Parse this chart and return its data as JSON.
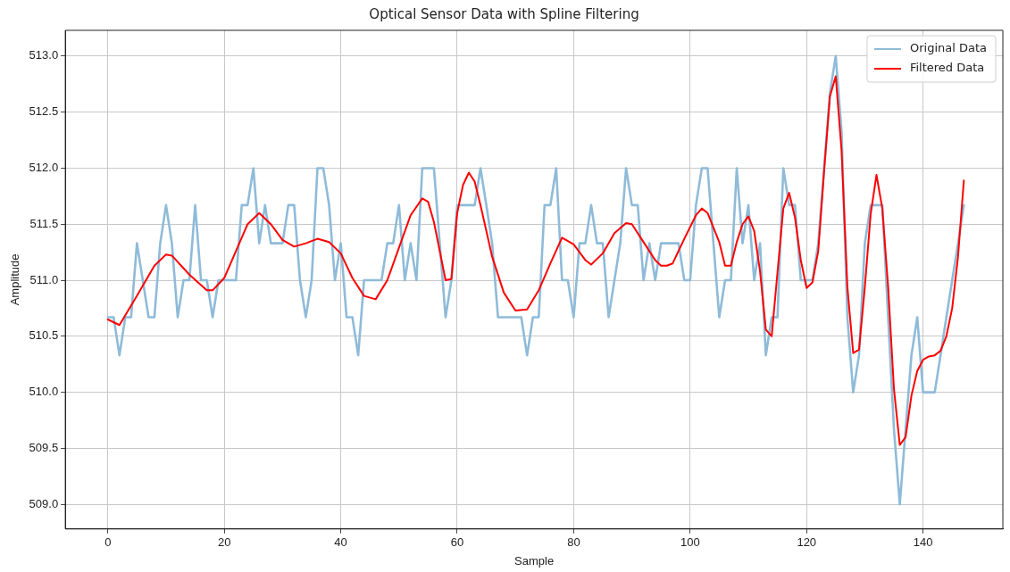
{
  "chart_data": {
    "type": "line",
    "title": "Optical Sensor Data with Spline Filtering",
    "xlabel": "Sample",
    "ylabel": "Amplitude",
    "x": [
      0,
      1,
      2,
      3,
      4,
      5,
      6,
      7,
      8,
      9,
      10,
      11,
      12,
      13,
      14,
      15,
      16,
      17,
      18,
      19,
      20,
      21,
      22,
      23,
      24,
      25,
      26,
      27,
      28,
      29,
      30,
      31,
      32,
      33,
      34,
      35,
      36,
      37,
      38,
      39,
      40,
      41,
      42,
      43,
      44,
      45,
      46,
      47,
      48,
      49,
      50,
      51,
      52,
      53,
      54,
      55,
      56,
      57,
      58,
      59,
      60,
      61,
      62,
      63,
      64,
      65,
      66,
      67,
      68,
      69,
      70,
      71,
      72,
      73,
      74,
      75,
      76,
      77,
      78,
      79,
      80,
      81,
      82,
      83,
      84,
      85,
      86,
      87,
      88,
      89,
      90,
      91,
      92,
      93,
      94,
      95,
      96,
      97,
      98,
      99,
      100,
      101,
      102,
      103,
      104,
      105,
      106,
      107,
      108,
      109,
      110,
      111,
      112,
      113,
      114,
      115,
      116,
      117,
      118,
      119,
      120,
      121,
      122,
      123,
      124,
      125,
      126,
      127,
      128,
      129,
      130,
      131,
      132,
      133,
      134,
      135,
      136,
      137,
      138,
      139,
      140,
      141,
      142,
      143,
      144,
      145,
      146,
      147
    ],
    "series": [
      {
        "name": "Original Data",
        "color": "#8fbbd9",
        "values": [
          510.67,
          510.67,
          510.33,
          510.67,
          510.67,
          511.33,
          511,
          510.67,
          510.67,
          511.33,
          511.67,
          511.33,
          510.67,
          511,
          511,
          511.67,
          511,
          511,
          510.67,
          511,
          511,
          511,
          511,
          511.67,
          511.67,
          512,
          511.33,
          511.67,
          511.33,
          511.33,
          511.33,
          511.67,
          511.67,
          511,
          510.67,
          511,
          512,
          512,
          511.67,
          511,
          511.33,
          510.67,
          510.67,
          510.33,
          511,
          511,
          511,
          511,
          511.33,
          511.33,
          511.67,
          511,
          511.33,
          511,
          512,
          512,
          512,
          511.33,
          510.67,
          511,
          511.67,
          511.67,
          511.67,
          511.67,
          512,
          511.67,
          511.33,
          510.67,
          510.67,
          510.67,
          510.67,
          510.67,
          510.33,
          510.67,
          510.67,
          511.67,
          511.67,
          512,
          511,
          511,
          510.67,
          511.33,
          511.33,
          511.67,
          511.33,
          511.33,
          510.67,
          511,
          511.33,
          512,
          511.67,
          511.67,
          511,
          511.33,
          511,
          511.33,
          511.33,
          511.33,
          511.33,
          511,
          511,
          511.67,
          512,
          512,
          511.33,
          510.67,
          511,
          511,
          512,
          511.33,
          511.67,
          511,
          511.33,
          510.33,
          510.67,
          510.67,
          512,
          511.67,
          511.67,
          511,
          511,
          511,
          511.33,
          512,
          512.67,
          513,
          512.33,
          510.67,
          510,
          510.33,
          511.33,
          511.67,
          511.67,
          511.67,
          510.67,
          509.67,
          509,
          509.67,
          510.33,
          510.67,
          510,
          510,
          510,
          510.33,
          510.67,
          511,
          511.33,
          511.67
        ]
      },
      {
        "name": "Filtered Data",
        "color": "#ff0000",
        "x": [
          0,
          2,
          5,
          8,
          10,
          11,
          14,
          17,
          18,
          20,
          22,
          24,
          26,
          28,
          30,
          32,
          34,
          36,
          38,
          40,
          42,
          44,
          46,
          48,
          50,
          52,
          54,
          55,
          56,
          58,
          59,
          60,
          61,
          62,
          63,
          64,
          66,
          68,
          70,
          72,
          74,
          76,
          78,
          80,
          82,
          83,
          85,
          87,
          89,
          90,
          92,
          94,
          95,
          96,
          97,
          99,
          101,
          102,
          103,
          105,
          106,
          107,
          108,
          109,
          110,
          111,
          112,
          113,
          114,
          115,
          116,
          117,
          118,
          119,
          120,
          121,
          122,
          123,
          124,
          125,
          126,
          127,
          128,
          129,
          130,
          131,
          132,
          133,
          134,
          135,
          136,
          137,
          138,
          139,
          140,
          141,
          142,
          143,
          144,
          145,
          146,
          147
        ],
        "values": [
          510.65,
          510.6,
          510.86,
          511.13,
          511.23,
          511.22,
          511.05,
          510.91,
          510.91,
          511.02,
          511.26,
          511.5,
          511.6,
          511.5,
          511.36,
          511.3,
          511.33,
          511.37,
          511.34,
          511.24,
          511.02,
          510.86,
          510.83,
          511,
          511.29,
          511.58,
          511.73,
          511.7,
          511.52,
          511,
          511.01,
          511.6,
          511.85,
          511.96,
          511.88,
          511.67,
          511.21,
          510.89,
          510.73,
          510.74,
          510.91,
          511.15,
          511.38,
          511.32,
          511.18,
          511.14,
          511.24,
          511.42,
          511.51,
          511.5,
          511.34,
          511.18,
          511.13,
          511.13,
          511.15,
          511.37,
          511.58,
          511.64,
          511.6,
          511.34,
          511.13,
          511.13,
          511.34,
          511.5,
          511.57,
          511.44,
          511.08,
          510.56,
          510.5,
          511.07,
          511.64,
          511.78,
          511.56,
          511.18,
          510.93,
          510.98,
          511.26,
          511.97,
          512.64,
          512.82,
          512.16,
          510.94,
          510.35,
          510.38,
          510.94,
          511.59,
          511.94,
          511.64,
          510.94,
          510.03,
          509.53,
          509.6,
          509.97,
          510.19,
          510.29,
          510.32,
          510.33,
          510.37,
          510.5,
          510.75,
          511.21,
          511.89
        ]
      }
    ],
    "xlim": [
      -7.3,
      153.7
    ],
    "xticks": [
      0,
      20,
      40,
      60,
      80,
      100,
      120,
      140
    ],
    "ylim": [
      508.78,
      513.23
    ],
    "yticks": [
      {
        "value": 509,
        "label": "509.0"
      },
      {
        "value": 509.5,
        "label": "509.5"
      },
      {
        "value": 510,
        "label": "510.0"
      },
      {
        "value": 510.5,
        "label": "510.5"
      },
      {
        "value": 511,
        "label": "511.0"
      },
      {
        "value": 511.5,
        "label": "511.5"
      },
      {
        "value": 512,
        "label": "512.0"
      },
      {
        "value": 512.5,
        "label": "512.5"
      },
      {
        "value": 513,
        "label": "513.0"
      }
    ],
    "grid": true,
    "legend": "top right",
    "marker": "none",
    "line_style": "solid"
  }
}
